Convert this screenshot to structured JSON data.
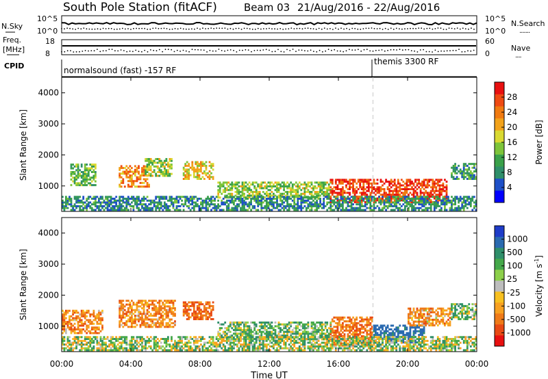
{
  "header": {
    "station": "South Pole Station (fitACF)",
    "beam": "Beam 03",
    "dates": "21/Aug/2016 - 22/Aug/2016"
  },
  "summary_panels": {
    "nsky_label": "N.Sky",
    "nsky_ticks": [
      "10^5",
      "10^0"
    ],
    "nsearch_label": "N.Search",
    "nsearch_ticks": [
      "10^5",
      "10^0"
    ],
    "freq_label_1": "Freq.",
    "freq_label_2": "[MHz]",
    "freq_ticks": [
      "18",
      "8"
    ],
    "nave_label": "Nave",
    "nave_ticks": [
      "60",
      "0"
    ],
    "cpid_label": "CPID",
    "cpid_segments": [
      {
        "start_hour": 0,
        "label": "normalsound (fast) -157 RF"
      },
      {
        "start_hour": 18,
        "label": "themis 3300 RF"
      }
    ]
  },
  "power_colorbar": {
    "label": "Power [dB]",
    "ticks": [
      "28",
      "24",
      "20",
      "16",
      "12",
      "8",
      "4"
    ],
    "colors": [
      "#0000ff",
      "#1e50c8",
      "#2f8f6a",
      "#3aa14a",
      "#7dc43a",
      "#d9d932",
      "#f2a21a",
      "#f07a10",
      "#ef4a12",
      "#e81010"
    ]
  },
  "velocity_colorbar": {
    "label": "Velocity [m s",
    "label_sup": "-1",
    "label_end": "]",
    "ticks": [
      "1000",
      "500",
      "100",
      "25",
      "-25",
      "-100",
      "-500",
      "-1000"
    ],
    "colors": [
      "#1e3cc8",
      "#2a6ab0",
      "#2f8f6a",
      "#45a84a",
      "#8ccf4a",
      "#bdbdbd",
      "#f7c020",
      "#f7a020",
      "#ef7a18",
      "#e84a14",
      "#e81010"
    ]
  },
  "chart_data": {
    "type": "heatmap",
    "xlabel": "Time UT",
    "x_tick_labels": [
      "00:00",
      "04:00",
      "08:00",
      "12:00",
      "16:00",
      "20:00",
      "00:00"
    ],
    "x_range_hours": [
      0,
      24
    ],
    "ylabel": "Slant Range [km]",
    "y_tick_labels": [
      "1000",
      "2000",
      "3000",
      "4000"
    ],
    "y_range_km": [
      180,
      4500
    ],
    "vertical_marker_hour": 18,
    "panels": [
      {
        "variable": "Power [dB]",
        "regions": [
          {
            "t0": 0.5,
            "t1": 2.0,
            "r0": 1000,
            "r1": 1700,
            "value": 12
          },
          {
            "t0": 3.3,
            "t1": 5.0,
            "r0": 950,
            "r1": 1650,
            "value": 22
          },
          {
            "t0": 4.8,
            "t1": 6.3,
            "r0": 1300,
            "r1": 1900,
            "value": 14
          },
          {
            "t0": 7.0,
            "t1": 8.7,
            "r0": 1200,
            "r1": 1800,
            "value": 18
          },
          {
            "t0": 9.0,
            "t1": 15.5,
            "r0": 600,
            "r1": 1100,
            "value": 14
          },
          {
            "t0": 15.5,
            "t1": 22.3,
            "r0": 450,
            "r1": 1200,
            "value": 26
          },
          {
            "t0": 22.5,
            "t1": 24.0,
            "r0": 1200,
            "r1": 1700,
            "value": 10
          },
          {
            "t0": 0.0,
            "t1": 24.0,
            "r0": 200,
            "r1": 650,
            "value": 8
          }
        ]
      },
      {
        "variable": "Velocity [m s^-1]",
        "regions": [
          {
            "t0": 0.0,
            "t1": 2.4,
            "r0": 750,
            "r1": 1500,
            "value": -300
          },
          {
            "t0": 3.3,
            "t1": 6.5,
            "r0": 950,
            "r1": 1800,
            "value": -300
          },
          {
            "t0": 7.0,
            "t1": 8.7,
            "r0": 1200,
            "r1": 1800,
            "value": -450
          },
          {
            "t0": 9.0,
            "t1": 15.5,
            "r0": 550,
            "r1": 1100,
            "value": 200
          },
          {
            "t0": 15.5,
            "t1": 18.0,
            "r0": 350,
            "r1": 1300,
            "value": -400
          },
          {
            "t0": 18.0,
            "t1": 21.0,
            "r0": 450,
            "r1": 1000,
            "value": 700
          },
          {
            "t0": 20.0,
            "t1": 22.5,
            "r0": 1000,
            "r1": 1600,
            "value": -250
          },
          {
            "t0": 22.5,
            "t1": 24.0,
            "r0": 1200,
            "r1": 1700,
            "value": 150
          },
          {
            "t0": 0.0,
            "t1": 24.0,
            "r0": 200,
            "r1": 650,
            "value": 80
          }
        ]
      }
    ]
  }
}
